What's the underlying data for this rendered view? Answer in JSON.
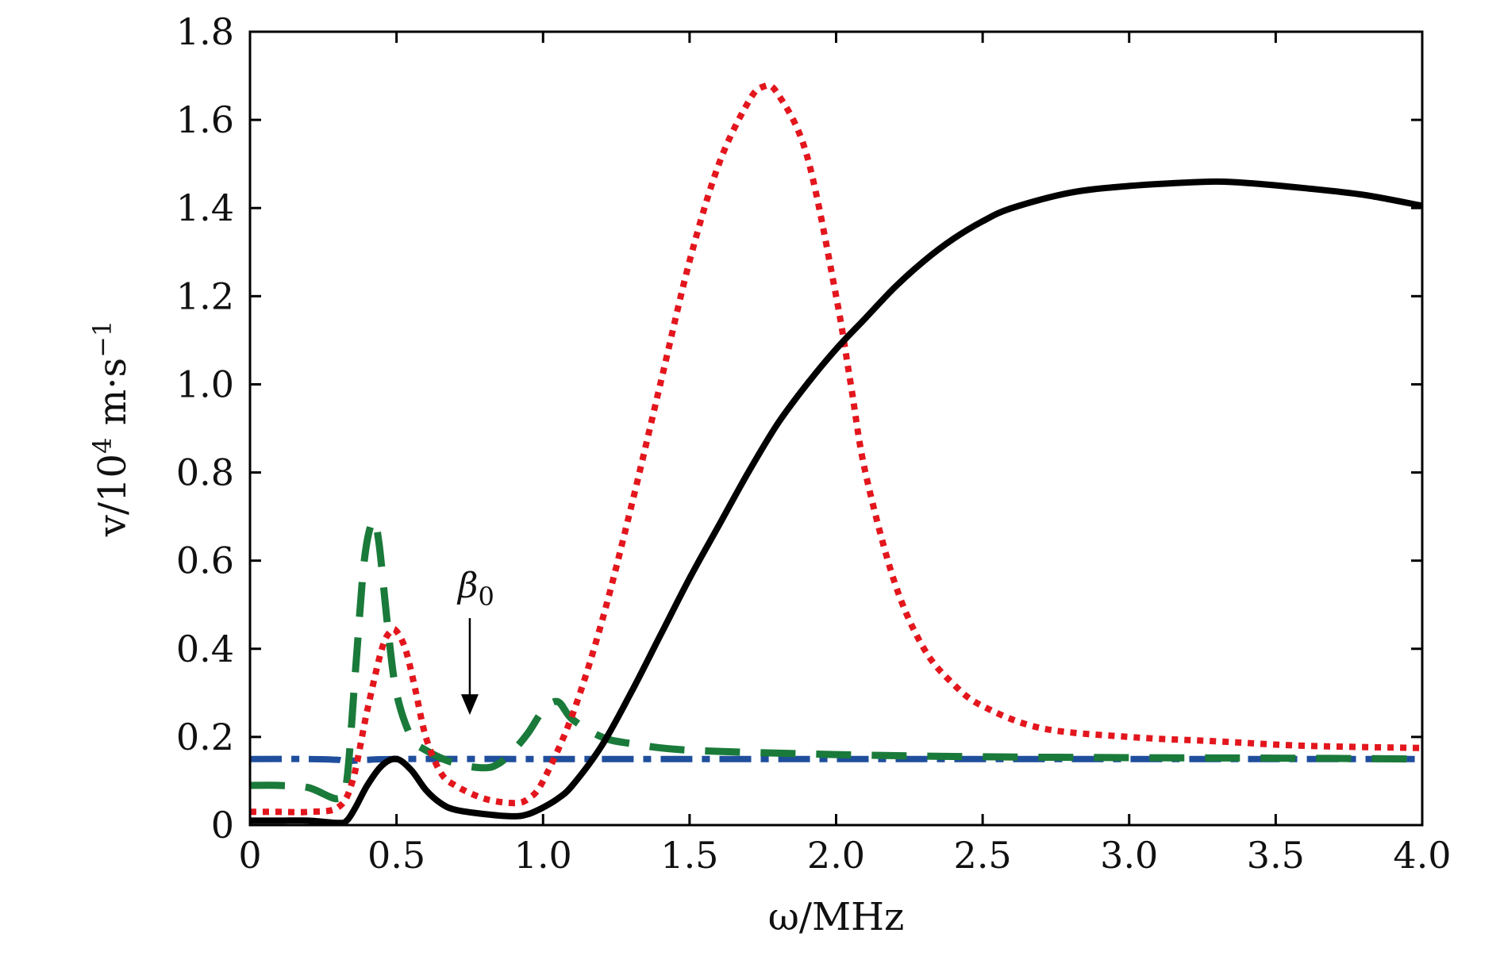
{
  "chart_data": {
    "type": "line",
    "xlabel": "ω/MHz",
    "ylabel_main": "v/10",
    "ylabel_exp": "4",
    "ylabel_unit": " m·s",
    "ylabel_unit_exp": "−1",
    "xlim": [
      0,
      4.0
    ],
    "ylim": [
      0,
      1.8
    ],
    "xticks": [
      "0",
      "0.5",
      "1.0",
      "1.5",
      "2.0",
      "2.5",
      "3.0",
      "3.5",
      "4.0"
    ],
    "yticks": [
      "0",
      "0.2",
      "0.4",
      "0.6",
      "0.8",
      "1.0",
      "1.2",
      "1.4",
      "1.6",
      "1.8"
    ],
    "grid": false,
    "annotation": {
      "text": "β",
      "subscript": "0",
      "x": 0.75,
      "arrow_from_y": 0.52,
      "arrow_to_y": 0.25
    },
    "series": [
      {
        "style": "solid",
        "color": "#000000",
        "x": [
          0,
          0.1,
          0.2,
          0.3,
          0.33,
          0.36,
          0.4,
          0.45,
          0.5,
          0.55,
          0.6,
          0.65,
          0.7,
          0.8,
          0.9,
          0.95,
          1.0,
          1.05,
          1.1,
          1.2,
          1.3,
          1.4,
          1.5,
          1.6,
          1.7,
          1.8,
          1.9,
          2.0,
          2.1,
          2.2,
          2.3,
          2.4,
          2.5,
          2.6,
          2.8,
          3.0,
          3.2,
          3.3,
          3.4,
          3.6,
          3.8,
          4.0
        ],
        "y": [
          0.01,
          0.01,
          0.01,
          0.005,
          0.01,
          0.04,
          0.09,
          0.135,
          0.15,
          0.125,
          0.08,
          0.05,
          0.035,
          0.025,
          0.02,
          0.025,
          0.04,
          0.06,
          0.09,
          0.18,
          0.3,
          0.43,
          0.56,
          0.68,
          0.8,
          0.91,
          1.0,
          1.08,
          1.15,
          1.22,
          1.28,
          1.33,
          1.37,
          1.4,
          1.435,
          1.45,
          1.458,
          1.46,
          1.457,
          1.445,
          1.43,
          1.405
        ]
      },
      {
        "style": "dotted",
        "color": "#e3161d",
        "x": [
          0,
          0.1,
          0.2,
          0.3,
          0.35,
          0.4,
          0.45,
          0.48,
          0.5,
          0.53,
          0.56,
          0.6,
          0.65,
          0.7,
          0.8,
          0.9,
          0.95,
          1.0,
          1.1,
          1.2,
          1.3,
          1.4,
          1.5,
          1.6,
          1.7,
          1.75,
          1.8,
          1.9,
          2.0,
          2.05,
          2.1,
          2.2,
          2.3,
          2.4,
          2.5,
          2.7,
          3.0,
          3.3,
          3.6,
          4.0
        ],
        "y": [
          0.03,
          0.03,
          0.03,
          0.04,
          0.1,
          0.26,
          0.4,
          0.44,
          0.44,
          0.4,
          0.32,
          0.2,
          0.12,
          0.09,
          0.06,
          0.05,
          0.06,
          0.1,
          0.25,
          0.46,
          0.72,
          1.0,
          1.28,
          1.5,
          1.64,
          1.675,
          1.66,
          1.52,
          1.2,
          1.0,
          0.8,
          0.55,
          0.4,
          0.32,
          0.27,
          0.22,
          0.2,
          0.19,
          0.18,
          0.175
        ]
      },
      {
        "style": "dashed",
        "color": "#1a7a3a",
        "x": [
          0,
          0.1,
          0.2,
          0.3,
          0.33,
          0.36,
          0.39,
          0.42,
          0.44,
          0.47,
          0.5,
          0.55,
          0.6,
          0.7,
          0.8,
          0.85,
          0.9,
          0.95,
          1.0,
          1.05,
          1.1,
          1.2,
          1.3,
          1.5,
          2.0,
          2.5,
          3.0,
          3.5,
          4.0
        ],
        "y": [
          0.09,
          0.09,
          0.085,
          0.06,
          0.1,
          0.35,
          0.6,
          0.69,
          0.64,
          0.45,
          0.3,
          0.2,
          0.17,
          0.14,
          0.13,
          0.14,
          0.17,
          0.21,
          0.26,
          0.28,
          0.24,
          0.2,
          0.185,
          0.17,
          0.16,
          0.155,
          0.153,
          0.152,
          0.15
        ]
      },
      {
        "style": "dashdot",
        "color": "#1f4e9c",
        "x": [
          0,
          0.2,
          0.3,
          0.32,
          0.4,
          0.5,
          1.0,
          2.0,
          3.0,
          4.0
        ],
        "y": [
          0.15,
          0.15,
          0.148,
          0.145,
          0.148,
          0.15,
          0.15,
          0.15,
          0.15,
          0.15
        ]
      }
    ]
  }
}
